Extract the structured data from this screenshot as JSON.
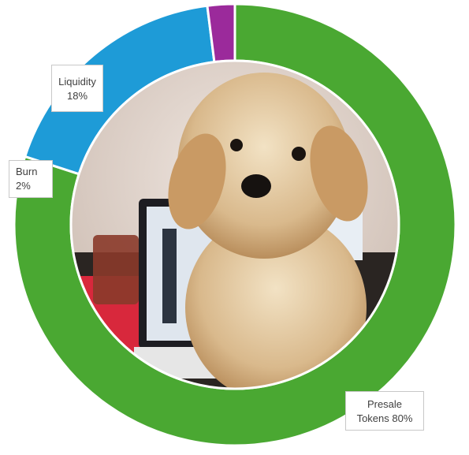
{
  "chart_data": {
    "type": "pie",
    "subtype": "donut",
    "categories": [
      "Presale Tokens",
      "Liquidity",
      "Burn"
    ],
    "values": [
      80,
      18,
      2
    ],
    "colors": [
      "#4aa832",
      "#1e9bd7",
      "#9b2a9b"
    ],
    "data_labels": [
      {
        "name": "Presale",
        "name2": "Tokens",
        "value": "80%"
      },
      {
        "name": "Liquidity",
        "value": "18%"
      },
      {
        "name": "Burn",
        "value": "2%"
      }
    ],
    "center_image": "puppy-photo",
    "legend": "none"
  }
}
